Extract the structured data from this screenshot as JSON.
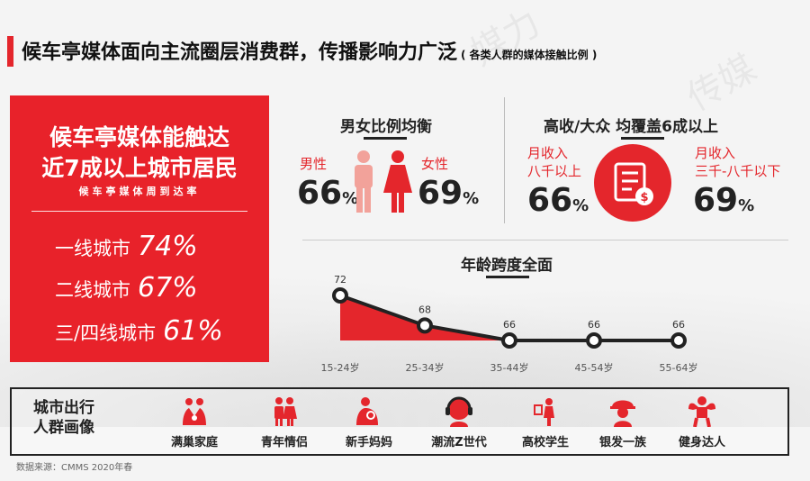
{
  "title": "候车亭媒体面向主流圈层消费群，传播影响力广泛",
  "subtitle": "( 各类人群的媒体接触比例 )",
  "reach": {
    "heading1": "候车亭媒体能触达",
    "heading2": "近7成以上城市居民",
    "caption": "候车亭媒体周到达率",
    "rows": [
      {
        "label": "一线城市",
        "value": "74%"
      },
      {
        "label": "二线城市",
        "value": "67%"
      },
      {
        "label": "三/四线城市",
        "value": "61%"
      }
    ]
  },
  "gender": {
    "title": "男女比例均衡",
    "male_label": "男性",
    "male_value": "66",
    "female_label": "女性",
    "female_value": "69",
    "unit": "%"
  },
  "income": {
    "title": "高收/大众 均覆盖6成以上",
    "high_label_1": "月收入",
    "high_label_2": "八千以上",
    "high_value": "66",
    "mid_label_1": "月收入",
    "mid_label_2": "三千-八千以下",
    "mid_value": "69",
    "unit": "%"
  },
  "chart_data": {
    "type": "area",
    "title": "年龄跨度全面",
    "categories": [
      "15-24岁",
      "25-34岁",
      "35-44岁",
      "45-54岁",
      "55-64岁"
    ],
    "values": [
      72,
      68,
      66,
      66,
      66
    ],
    "color": "#e4262c"
  },
  "personas": {
    "title_1": "城市出行",
    "title_2": "人群画像",
    "items": [
      {
        "label": "满巢家庭",
        "icon": "family-icon"
      },
      {
        "label": "青年情侣",
        "icon": "couple-icon"
      },
      {
        "label": "新手妈妈",
        "icon": "mother-baby-icon"
      },
      {
        "label": "潮流Z世代",
        "icon": "headphones-person-icon"
      },
      {
        "label": "高校学生",
        "icon": "student-icon"
      },
      {
        "label": "银发一族",
        "icon": "elder-icon"
      },
      {
        "label": "健身达人",
        "icon": "fitness-icon"
      }
    ]
  },
  "source": "数据来源：CMMS 2020年春",
  "colors": {
    "accent": "#e4262c",
    "text": "#222222"
  }
}
